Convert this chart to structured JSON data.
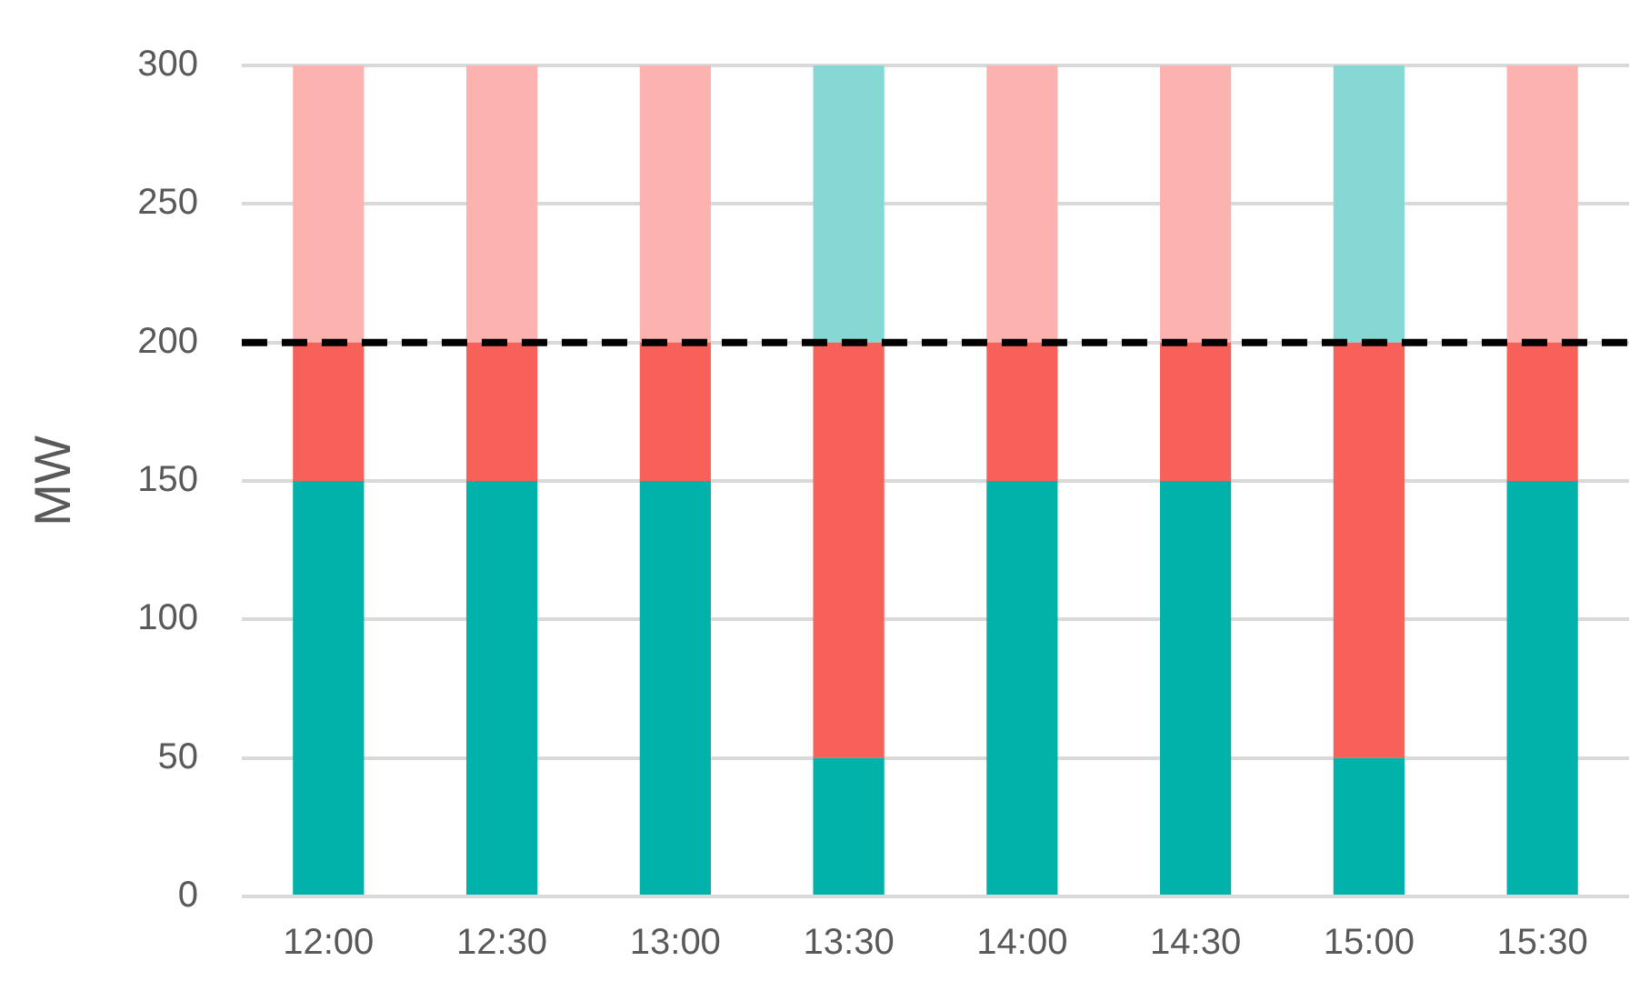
{
  "chart_data": {
    "type": "bar",
    "stacked": true,
    "ylabel": "MW",
    "categories": [
      "12:00",
      "12:30",
      "13:00",
      "13:30",
      "14:00",
      "14:30",
      "15:00",
      "15:30"
    ],
    "series": [
      {
        "color": "#00b2a9",
        "values": [
          150,
          150,
          150,
          50,
          150,
          150,
          50,
          150
        ]
      },
      {
        "color": "#f8605a",
        "values": [
          50,
          50,
          50,
          150,
          50,
          50,
          150,
          50
        ]
      },
      {
        "colors": [
          "#fcb3b0",
          "#fcb3b0",
          "#fcb3b0",
          "#85d8d4",
          "#fcb3b0",
          "#fcb3b0",
          "#85d8d4",
          "#fcb3b0"
        ],
        "values": [
          100,
          100,
          100,
          100,
          100,
          100,
          100,
          100
        ]
      }
    ],
    "ylim": [
      0,
      300
    ],
    "yticks": [
      0,
      50,
      100,
      150,
      200,
      250,
      300
    ],
    "grid": "y",
    "legend": false,
    "ref_lines": [
      {
        "axis": "y",
        "value": 200,
        "color": "#000000",
        "line_style": "dashed"
      }
    ]
  }
}
